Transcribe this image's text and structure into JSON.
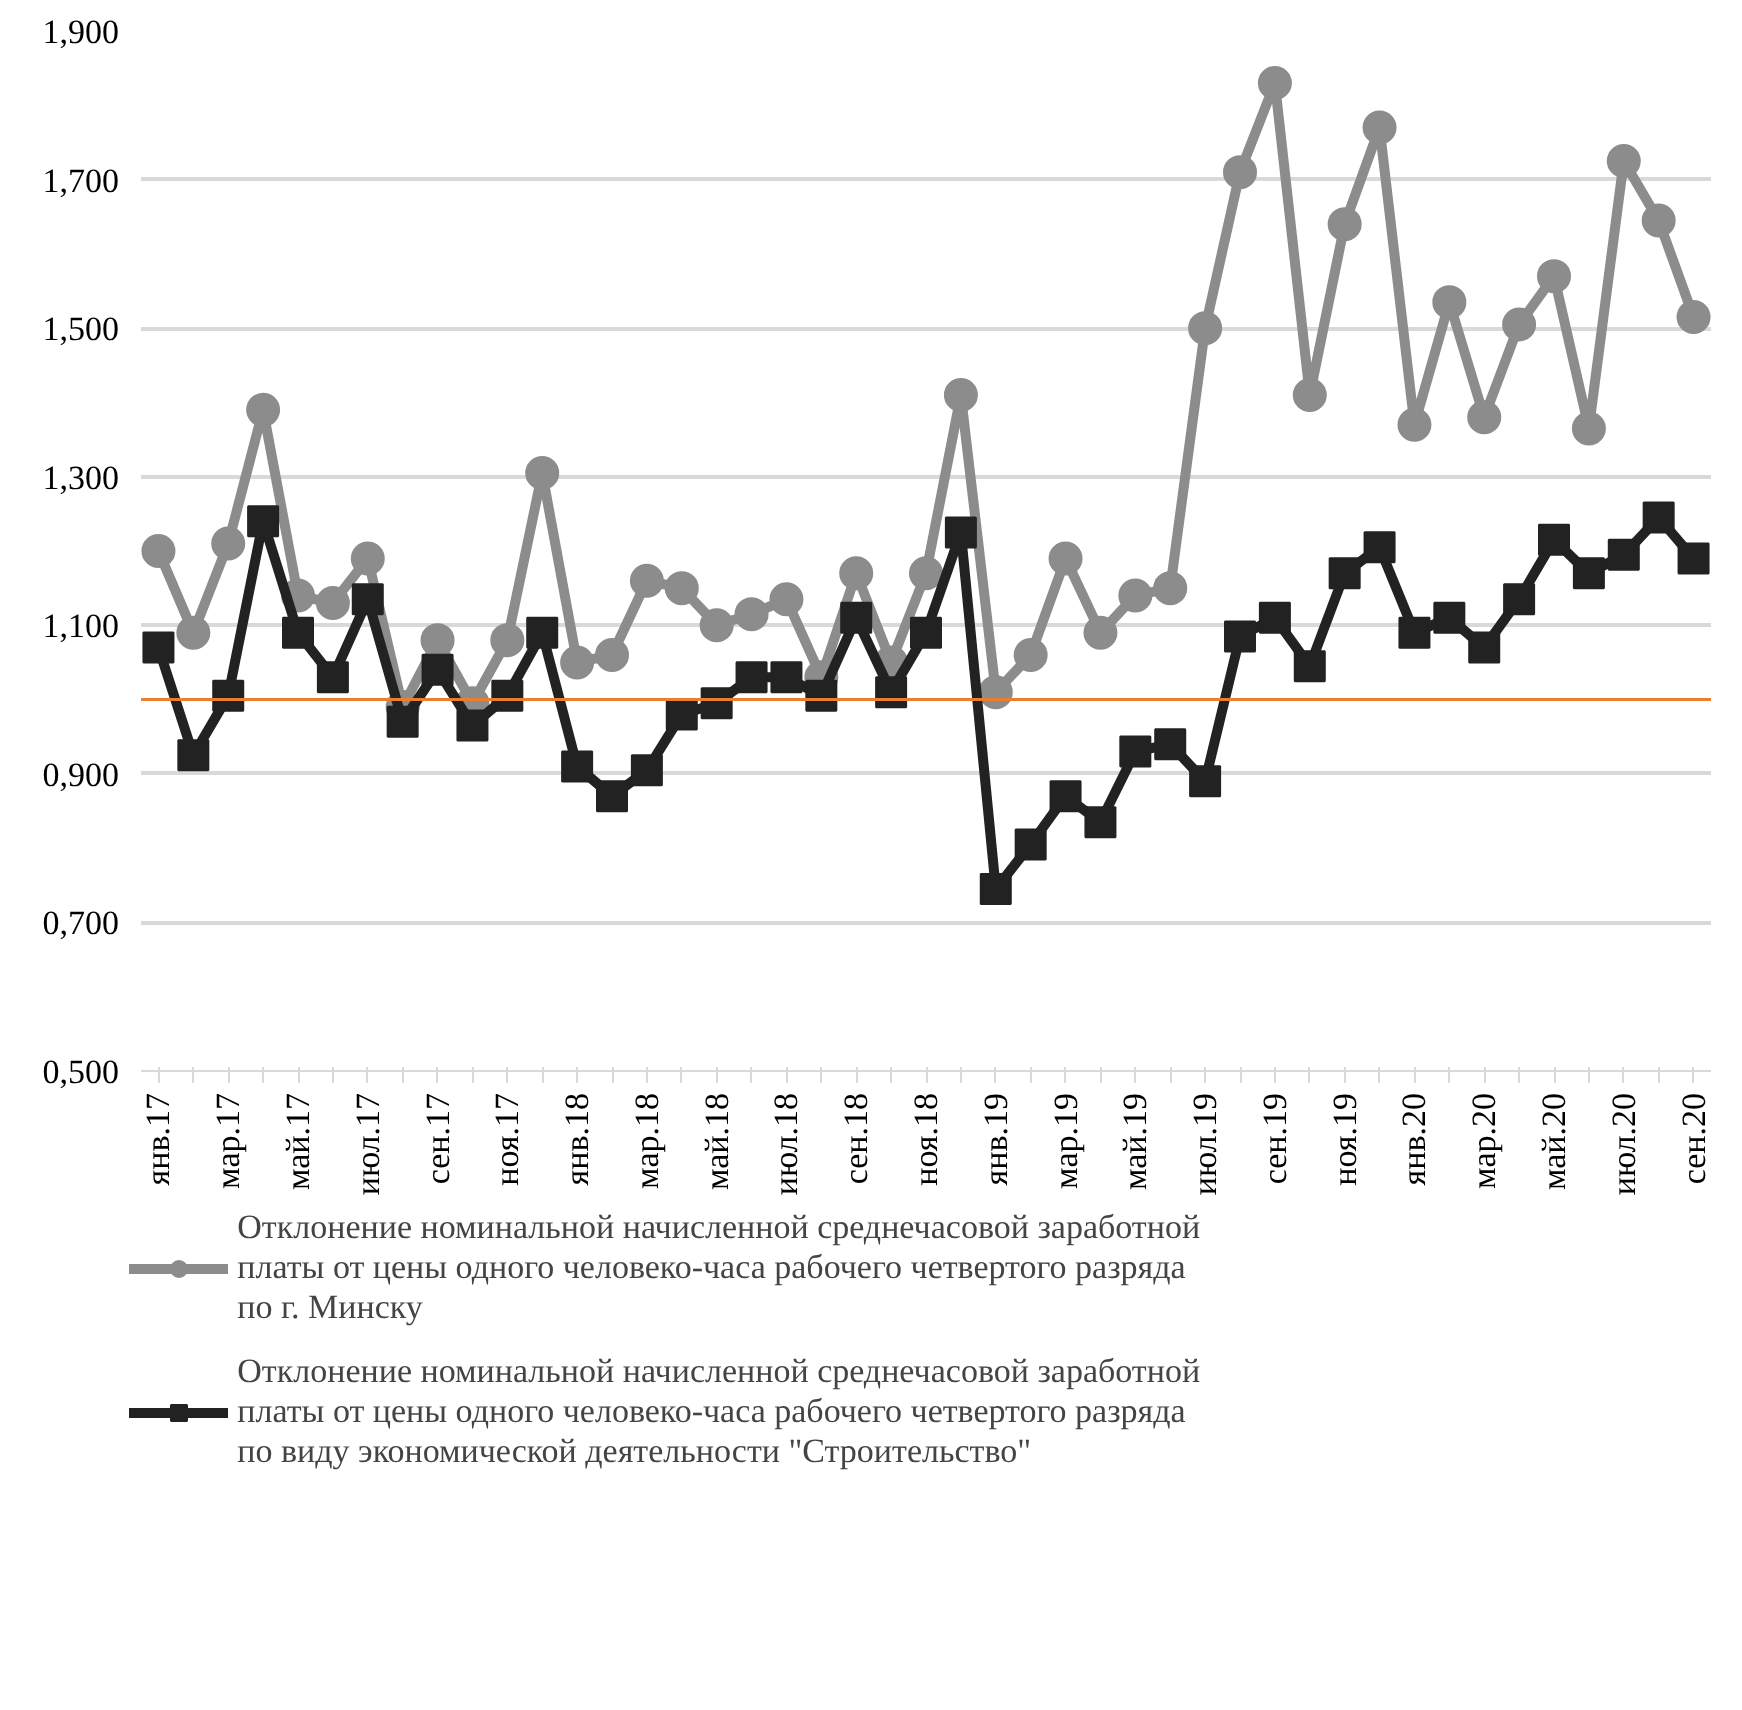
{
  "chart_data": {
    "type": "line",
    "categories": [
      "янв.17",
      null,
      "мар.17",
      null,
      "май.17",
      null,
      "июл.17",
      null,
      "сен.17",
      null,
      "ноя.17",
      null,
      "янв.18",
      null,
      "мар.18",
      null,
      "май.18",
      null,
      "июл.18",
      null,
      "сен.18",
      null,
      "ноя.18",
      null,
      "янв.19",
      null,
      "мар.19",
      null,
      "май.19",
      null,
      "июл.19",
      null,
      "сен.19",
      null,
      "ноя.19",
      null,
      "янв.20",
      null,
      "мар.20",
      null,
      "май.20",
      null,
      "июл.20",
      null,
      "сен.20"
    ],
    "series": [
      {
        "name": "Отклонение номинальной начисленной среднечасовой заработной платы от цены одного человеко-часа рабочего четвертого разряда по г. Минску",
        "color": "#8c8c8c",
        "marker": "circle",
        "values": [
          1.2,
          1.09,
          1.21,
          1.39,
          1.14,
          1.13,
          1.19,
          0.99,
          1.08,
          0.995,
          1.08,
          1.305,
          1.05,
          1.06,
          1.16,
          1.15,
          1.1,
          1.115,
          1.135,
          1.03,
          1.17,
          1.05,
          1.17,
          1.41,
          1.01,
          1.06,
          1.19,
          1.09,
          1.14,
          1.15,
          1.5,
          1.71,
          1.83,
          1.41,
          1.64,
          1.77,
          1.37,
          1.535,
          1.38,
          1.505,
          1.57,
          1.365,
          1.725,
          1.645,
          1.515
        ]
      },
      {
        "name": "Отклонение номинальной начисленной среднечасовой заработной платы от цены одного человеко-часа рабочего четвертого разряда по виду экономической деятельности \"Строительство\"",
        "color": "#222222",
        "marker": "square",
        "values": [
          1.07,
          0.925,
          1.005,
          1.24,
          1.09,
          1.03,
          1.135,
          0.97,
          1.04,
          0.965,
          1.005,
          1.09,
          0.91,
          0.87,
          0.905,
          0.98,
          0.995,
          1.03,
          1.03,
          1.005,
          1.11,
          1.01,
          1.09,
          1.225,
          0.745,
          0.805,
          0.87,
          0.835,
          0.93,
          0.94,
          0.89,
          1.085,
          1.11,
          1.045,
          1.17,
          1.205,
          1.09,
          1.11,
          1.07,
          1.135,
          1.215,
          1.17,
          1.195,
          1.245,
          1.19
        ]
      }
    ],
    "ylim": [
      0.5,
      1.9
    ],
    "yticks": [
      {
        "value": 0.5,
        "label": "0,500"
      },
      {
        "value": 0.7,
        "label": "0,700"
      },
      {
        "value": 0.9,
        "label": "0,900"
      },
      {
        "value": 1.1,
        "label": "1,100"
      },
      {
        "value": 1.3,
        "label": "1,300"
      },
      {
        "value": 1.5,
        "label": "1,500"
      },
      {
        "value": 1.7,
        "label": "1,700"
      },
      {
        "value": 1.9,
        "label": "1,900"
      }
    ],
    "ref_lines": [
      {
        "axis": "y",
        "value": 1.0,
        "color": "#ed7d31"
      }
    ],
    "grid": "y",
    "legend": "bottom",
    "line_style": "solid"
  }
}
